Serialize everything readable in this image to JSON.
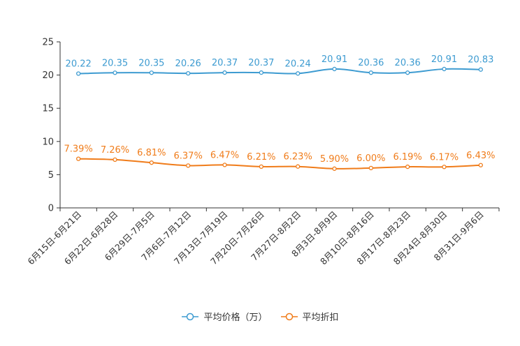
{
  "chart_data": {
    "type": "line",
    "categories": [
      "6月15日-6月21日",
      "6月22日-6月28日",
      "6月29日-7月5日",
      "7月6日-7月12日",
      "7月13日-7月19日",
      "7月20日-7月26日",
      "7月27日-8月2日",
      "8月3日-8月9日",
      "8月10日-8月16日",
      "8月17日-8月23日",
      "8月24日-8月30日",
      "8月31日-9月6日"
    ],
    "series": [
      {
        "name": "平均价格（万）",
        "color": "#3d9bd1",
        "values": [
          20.22,
          20.35,
          20.35,
          20.26,
          20.37,
          20.37,
          20.24,
          20.91,
          20.36,
          20.36,
          20.91,
          20.83
        ],
        "labels": [
          "20.22",
          "20.35",
          "20.35",
          "20.26",
          "20.37",
          "20.37",
          "20.24",
          "20.91",
          "20.36",
          "20.36",
          "20.91",
          "20.83"
        ]
      },
      {
        "name": "平均折扣",
        "color": "#f07c1a",
        "values": [
          7.39,
          7.26,
          6.81,
          6.37,
          6.47,
          6.21,
          6.23,
          5.9,
          6.0,
          6.19,
          6.17,
          6.43
        ],
        "labels": [
          "7.39%",
          "7.26%",
          "6.81%",
          "6.37%",
          "6.47%",
          "6.21%",
          "6.23%",
          "5.90%",
          "6.00%",
          "6.19%",
          "6.17%",
          "6.43%"
        ]
      }
    ],
    "ylim": [
      0,
      25
    ],
    "yticks": [
      0,
      5,
      10,
      15,
      20,
      25
    ],
    "ytick_labels": [
      "0",
      "5",
      "10",
      "15",
      "20",
      "25"
    ],
    "legend_position": "bottom-center"
  }
}
